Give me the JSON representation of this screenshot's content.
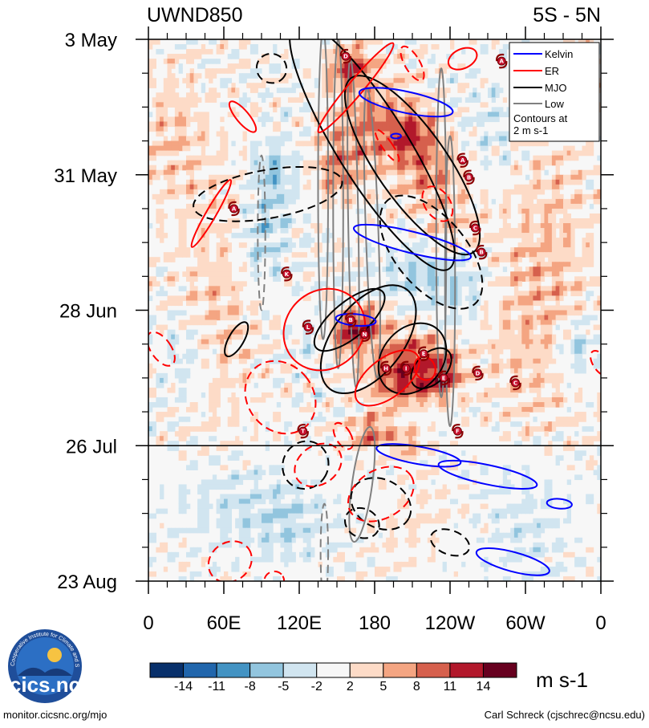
{
  "chart_data": {
    "type": "heatmap",
    "title_left": "UWND850",
    "title_right": "5S - 5N",
    "x_ticks": [
      {
        "label": "0",
        "lon": 0
      },
      {
        "label": "60E",
        "lon": 60
      },
      {
        "label": "120E",
        "lon": 120
      },
      {
        "label": "180",
        "lon": 180
      },
      {
        "label": "120W",
        "lon": 240
      },
      {
        "label": "60W",
        "lon": 300
      },
      {
        "label": "0",
        "lon": 360
      }
    ],
    "x_range": [
      0,
      360
    ],
    "y_ticks": [
      {
        "label": "3 May",
        "day": 0
      },
      {
        "label": "31 May",
        "day": 28
      },
      {
        "label": "28 Jun",
        "day": 56
      },
      {
        "label": "26 Jul",
        "day": 84
      },
      {
        "label": "23 Aug",
        "day": 112
      }
    ],
    "y_range": [
      0,
      112
    ],
    "forecast_start_day": 84,
    "colorbar": {
      "levels": [
        "-14",
        "-11",
        "-8",
        "-5",
        "-2",
        "2",
        "5",
        "8",
        "11",
        "14"
      ],
      "colors": [
        "#08306b",
        "#2166ac",
        "#4393c3",
        "#92c5de",
        "#d1e5f0",
        "#f7f7f7",
        "#fddbc7",
        "#f4a582",
        "#d6604d",
        "#b2182b",
        "#67001f"
      ],
      "units": "m s-1"
    },
    "legend": {
      "entries": [
        {
          "name": "Kelvin",
          "color": "#0000ff"
        },
        {
          "name": "ER",
          "color": "#ff0000"
        },
        {
          "name": "MJO",
          "color": "#000000"
        },
        {
          "name": "Low",
          "color": "#808080"
        }
      ],
      "note_line1": "Contours at",
      "note_line2": "2 m s-1"
    },
    "storms": [
      {
        "letter": "D",
        "lon": 157,
        "day": 3.5
      },
      {
        "letter": "A",
        "lon": 281,
        "day": 4.5
      },
      {
        "letter": "A",
        "lon": 250,
        "day": 25
      },
      {
        "letter": "B",
        "lon": 255,
        "day": 28.5
      },
      {
        "letter": "A",
        "lon": 68,
        "day": 35
      },
      {
        "letter": "C",
        "lon": 260,
        "day": 39
      },
      {
        "letter": "B",
        "lon": 265,
        "day": 44
      },
      {
        "letter": "K",
        "lon": 110,
        "day": 48.5
      },
      {
        "letter": "B",
        "lon": 161,
        "day": 58
      },
      {
        "letter": "N",
        "lon": 172,
        "day": 61
      },
      {
        "letter": "L",
        "lon": 127,
        "day": 59.5
      },
      {
        "letter": "E",
        "lon": 219,
        "day": 65
      },
      {
        "letter": "H",
        "lon": 189,
        "day": 68
      },
      {
        "letter": "I",
        "lon": 205,
        "day": 68
      },
      {
        "letter": "E",
        "lon": 235,
        "day": 70
      },
      {
        "letter": "D",
        "lon": 262,
        "day": 69
      },
      {
        "letter": "C",
        "lon": 292,
        "day": 71
      },
      {
        "letter": "F",
        "lon": 246,
        "day": 81
      },
      {
        "letter": "T",
        "lon": 123,
        "day": 81
      }
    ]
  },
  "footer": {
    "left": "monitor.cicsnc.org/mjo",
    "right": "Carl Schreck (cjschrec@ncsu.edu)"
  },
  "logo": {
    "text": "cics.nc",
    "ring_text": "Cooperative Institute for Climate and Satellites"
  }
}
